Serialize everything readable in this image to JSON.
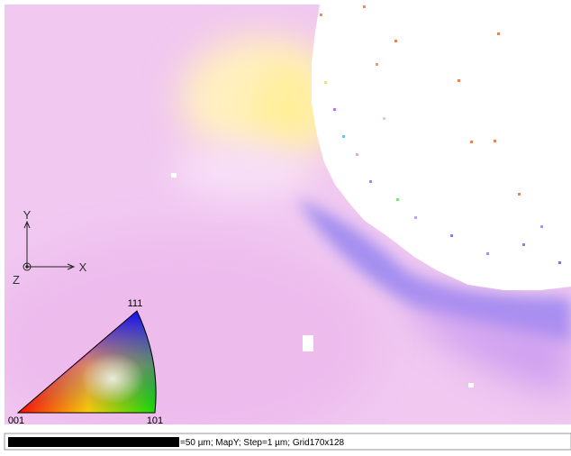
{
  "axes": {
    "y": "Y",
    "x": "X",
    "z": "Z"
  },
  "legend": {
    "top": "111",
    "left": "001",
    "right": "101"
  },
  "scale_bar": {
    "caption": "=50 µm; MapY; Step=1 µm; Grid170x128"
  }
}
